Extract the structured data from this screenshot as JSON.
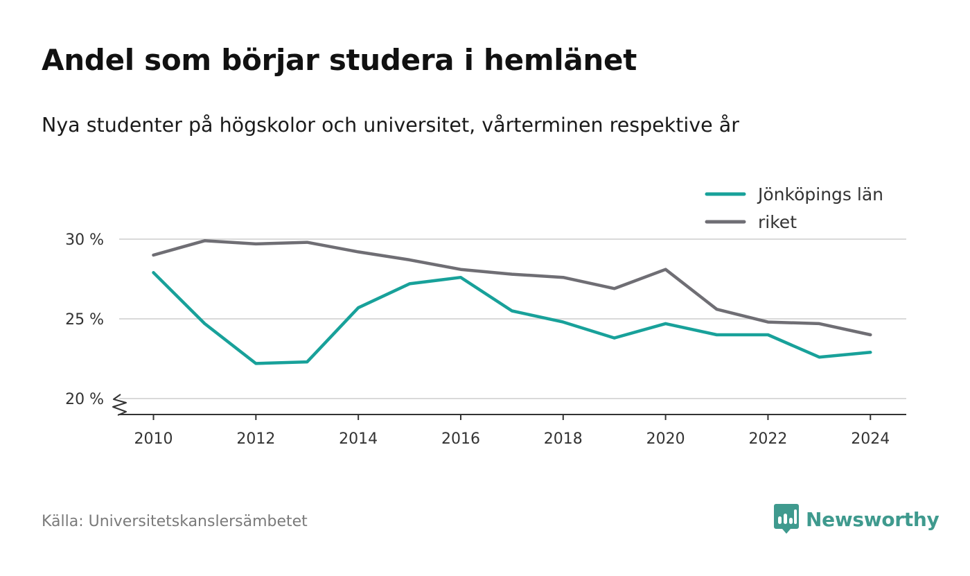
{
  "title": "Andel som börjar studera i hemlänet",
  "subtitle": "Nya studenter på högskolor och universitet, vårterminen respektive år",
  "source": "Källa: Universitetskanslersämbetet",
  "brand": {
    "name": "Newsworthy",
    "icon": "newsworthy-logo-icon",
    "color": "#3f9a8e"
  },
  "chart_data": {
    "type": "line",
    "title": "Andel som börjar studera i hemlänet",
    "subtitle": "Nya studenter på högskolor och universitet, vårterminen respektive år",
    "xlabel": "",
    "ylabel": "",
    "x": [
      2010,
      2011,
      2012,
      2013,
      2014,
      2015,
      2016,
      2017,
      2018,
      2019,
      2020,
      2021,
      2022,
      2023,
      2024
    ],
    "x_ticks": [
      "2010",
      "2012",
      "2014",
      "2016",
      "2018",
      "2020",
      "2022",
      "2024"
    ],
    "y_ticks": [
      {
        "value": 20,
        "label": "20 %"
      },
      {
        "value": 25,
        "label": "25 %"
      },
      {
        "value": 30,
        "label": "30 %"
      }
    ],
    "ylim": [
      19,
      31
    ],
    "xlim": [
      2009.33,
      2024.7
    ],
    "y_axis_break": true,
    "grid": true,
    "legend_position": "top-right",
    "series": [
      {
        "name": "Jönköpings län",
        "color": "#18a19a",
        "values": [
          27.9,
          24.7,
          22.2,
          22.3,
          25.7,
          27.2,
          27.6,
          25.5,
          24.8,
          23.8,
          24.7,
          24.0,
          24.0,
          22.6,
          22.9
        ]
      },
      {
        "name": "riket",
        "color": "#6f6e74",
        "values": [
          29.0,
          29.9,
          29.7,
          29.8,
          29.2,
          28.7,
          28.1,
          27.8,
          27.6,
          26.9,
          28.1,
          25.6,
          24.8,
          24.7,
          24.0
        ]
      }
    ]
  }
}
